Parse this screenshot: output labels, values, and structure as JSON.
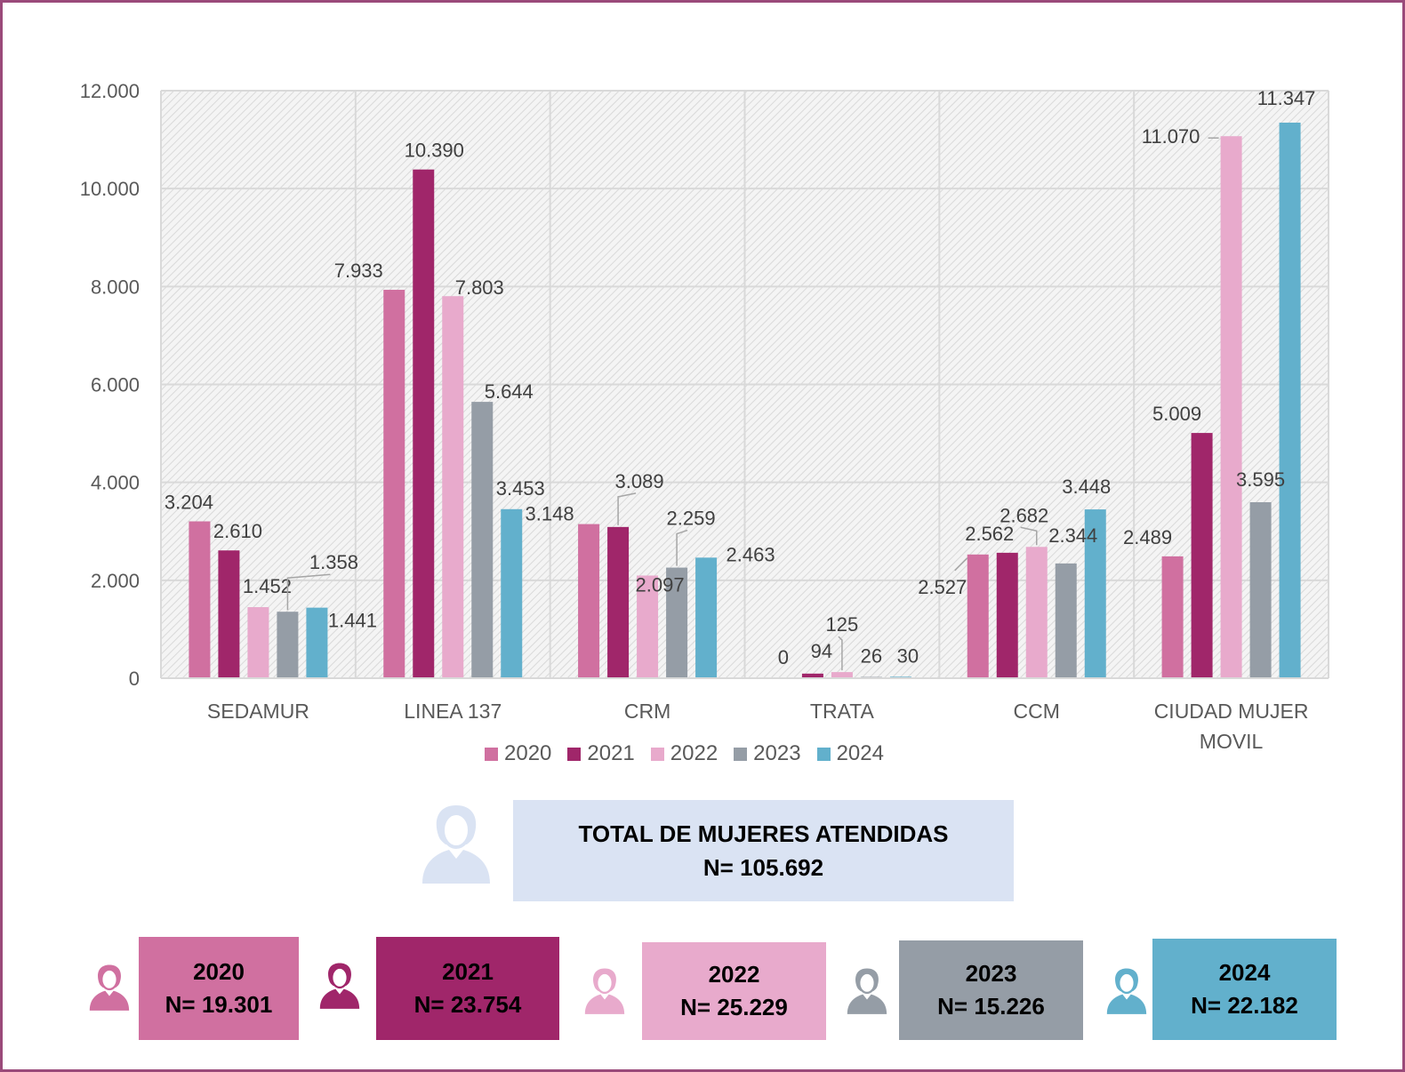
{
  "chart_data": {
    "type": "bar",
    "categories": [
      "SEDAMUR",
      "LINEA 137",
      "CRM",
      "TRATA",
      "CCM",
      "CIUDAD MUJER MOVIL"
    ],
    "category_lines": [
      [
        "SEDAMUR"
      ],
      [
        "LINEA 137"
      ],
      [
        "CRM"
      ],
      [
        "TRATA"
      ],
      [
        "CCM"
      ],
      [
        "CIUDAD MUJER",
        "MOVIL"
      ]
    ],
    "series": [
      {
        "name": "2020",
        "color": "#d070a0",
        "values": [
          3204,
          7933,
          3148,
          0,
          2527,
          2489
        ],
        "labels": [
          "3.204",
          "7.933",
          "3.148",
          "0",
          "2.527",
          "2.489"
        ]
      },
      {
        "name": "2021",
        "color": "#a0266a",
        "values": [
          2610,
          10390,
          3089,
          94,
          2562,
          5009
        ],
        "labels": [
          "2.610",
          "10.390",
          "3.089",
          "94",
          "2.562",
          "5.009"
        ]
      },
      {
        "name": "2022",
        "color": "#e8aacc",
        "values": [
          1452,
          7803,
          2097,
          125,
          2682,
          11070
        ],
        "labels": [
          "1.452",
          "7.803",
          "2.097",
          "125",
          "2.682",
          "11.070"
        ]
      },
      {
        "name": "2023",
        "color": "#959da6",
        "values": [
          1358,
          5644,
          2259,
          26,
          2344,
          3595
        ],
        "labels": [
          "1.358",
          "5.644",
          "2.259",
          "26",
          "2.344",
          "3.595"
        ]
      },
      {
        "name": "2024",
        "color": "#62b0cc",
        "values": [
          1441,
          3453,
          2463,
          30,
          3448,
          11347
        ],
        "labels": [
          "1.441",
          "3.453",
          "2.463",
          "30",
          "3.448",
          "11.347"
        ]
      }
    ],
    "yticks": [
      "0",
      "2.000",
      "4.000",
      "6.000",
      "8.000",
      "10.000",
      "12.000"
    ],
    "ylim": [
      0,
      12000
    ],
    "grid": true,
    "legend_position": "bottom"
  },
  "total": {
    "title": "TOTAL DE MUJERES ATENDIDAS",
    "value": "N= 105.692",
    "color": "#dae3f3",
    "icon": "woman-icon"
  },
  "years": [
    {
      "year": "2020",
      "value": "N= 19.301",
      "color": "#d070a0"
    },
    {
      "year": "2021",
      "value": "N= 23.754",
      "color": "#a0266a"
    },
    {
      "year": "2022",
      "value": "N= 25.229",
      "color": "#e8aacc"
    },
    {
      "year": "2023",
      "value": "N= 15.226",
      "color": "#959da6"
    },
    {
      "year": "2024",
      "value": "N= 22.182",
      "color": "#62b0cc"
    }
  ]
}
